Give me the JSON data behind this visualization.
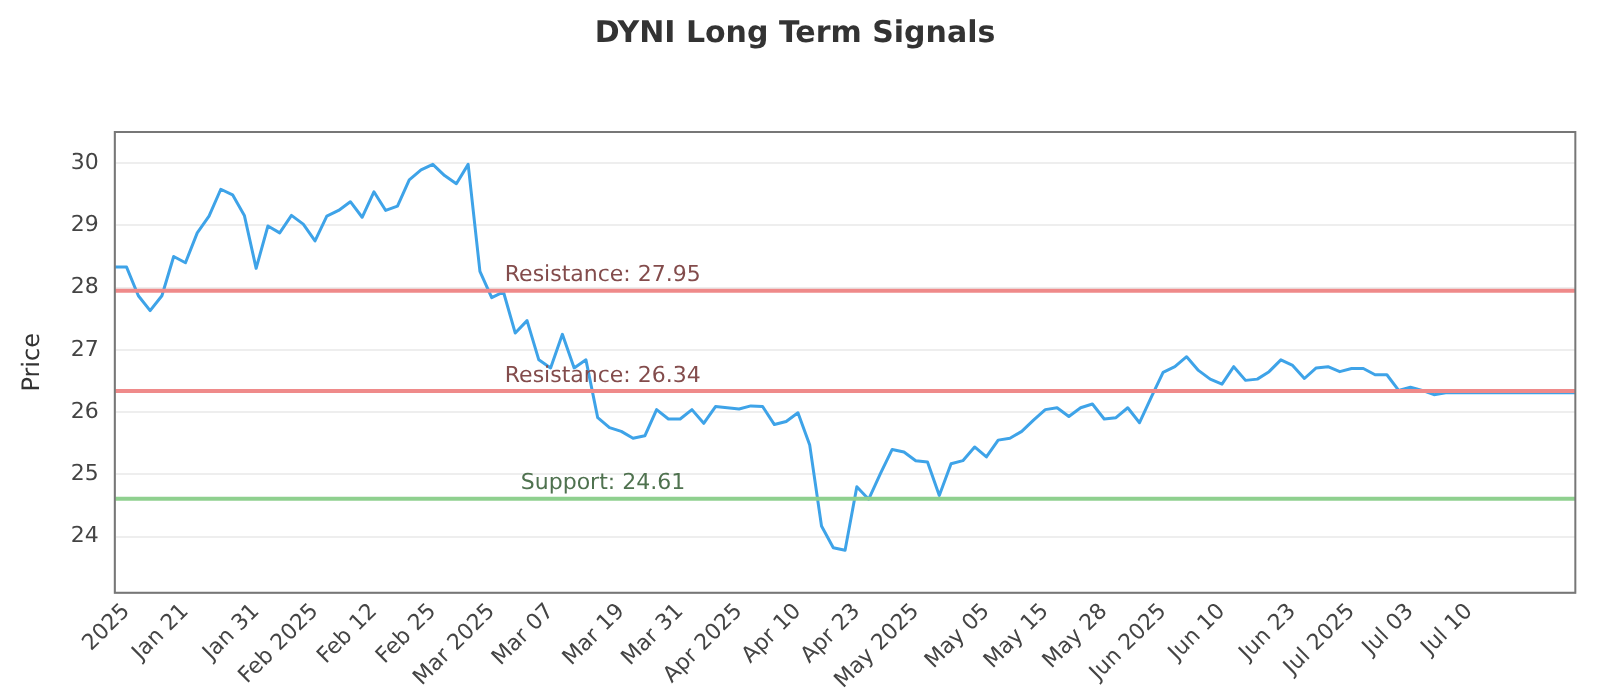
{
  "chart_data": {
    "type": "line",
    "title": "DYNI Long Term Signals",
    "ylabel": "Price",
    "categories": [
      null,
      "2025",
      null,
      null,
      null,
      null,
      "Jan 21",
      null,
      null,
      null,
      null,
      null,
      "Jan 31",
      null,
      null,
      null,
      null,
      "Feb 2025",
      null,
      null,
      null,
      null,
      "Feb 12",
      null,
      null,
      null,
      null,
      "Feb 25",
      null,
      null,
      null,
      null,
      "Mar 2025",
      null,
      null,
      null,
      null,
      "Mar 07",
      null,
      null,
      null,
      null,
      null,
      "Mar 19",
      null,
      null,
      null,
      null,
      "Mar 31",
      null,
      null,
      null,
      null,
      "Apr 2025",
      null,
      null,
      null,
      null,
      "Apr 10",
      null,
      null,
      null,
      null,
      "Apr 23",
      null,
      null,
      null,
      null,
      "May 2025",
      null,
      null,
      null,
      null,
      null,
      "May 05",
      null,
      null,
      null,
      null,
      "May 15",
      null,
      null,
      null,
      null,
      "May 28",
      null,
      null,
      null,
      null,
      "Jun 2025",
      null,
      null,
      null,
      null,
      "Jun 10",
      null,
      null,
      null,
      null,
      null,
      "Jun 23",
      null,
      null,
      null,
      null,
      "Jul 2025",
      null,
      null,
      null,
      null,
      "Jul 03",
      null,
      null,
      null,
      null,
      "Jul 10",
      null,
      null,
      null,
      null,
      null,
      null,
      null,
      null,
      null
    ],
    "series": [
      {
        "color": "#3ea3e8",
        "values": [
          28.33,
          28.33,
          27.87,
          27.63,
          27.87,
          28.5,
          28.4,
          28.88,
          29.15,
          29.58,
          29.49,
          29.16,
          28.31,
          28.99,
          28.88,
          29.16,
          29.02,
          28.75,
          29.15,
          29.24,
          29.38,
          29.13,
          29.54,
          29.24,
          29.31,
          29.73,
          29.89,
          29.98,
          29.8,
          29.67,
          29.98,
          28.26,
          27.84,
          27.93,
          27.27,
          27.47,
          26.84,
          26.71,
          27.25,
          26.71,
          26.84,
          25.91,
          25.75,
          25.69,
          25.58,
          25.62,
          26.04,
          25.89,
          25.89,
          26.04,
          25.82,
          26.09,
          26.07,
          26.05,
          26.1,
          26.09,
          25.8,
          25.85,
          25.99,
          25.47,
          24.17,
          23.82,
          23.78,
          24.8,
          24.6,
          25.01,
          25.4,
          25.36,
          25.22,
          25.2,
          24.66,
          25.17,
          25.22,
          25.44,
          25.28,
          25.55,
          25.58,
          25.69,
          25.87,
          26.04,
          26.07,
          25.93,
          26.07,
          26.13,
          25.89,
          25.91,
          26.07,
          25.83,
          26.24,
          26.64,
          26.73,
          26.89,
          26.67,
          26.53,
          26.45,
          26.73,
          26.51,
          26.53,
          26.65,
          26.84,
          26.75,
          26.54,
          26.71,
          26.73,
          26.65,
          26.7,
          26.7,
          26.6,
          26.6,
          26.35,
          26.4,
          26.35,
          26.28,
          26.31,
          26.31,
          26.31,
          26.31,
          26.31,
          26.31,
          26.31,
          26.31,
          26.31,
          26.31,
          26.31,
          26.31
        ]
      }
    ],
    "ylim": [
      23.1,
      30.5
    ],
    "yticks": [
      24,
      25,
      26,
      27,
      28,
      29,
      30
    ],
    "grid": "y",
    "marker": "none",
    "line_style": "solid",
    "legend": false,
    "ref_lines": [
      {
        "axis": "y",
        "value": 27.95,
        "label": "Resistance: 27.95",
        "color": "#ef8a8a"
      },
      {
        "axis": "y",
        "value": 26.34,
        "label": "Resistance: 26.34",
        "color": "#ef8a8a"
      },
      {
        "axis": "y",
        "value": 24.61,
        "label": "Support: 24.61",
        "color": "#8fd08f"
      }
    ]
  }
}
